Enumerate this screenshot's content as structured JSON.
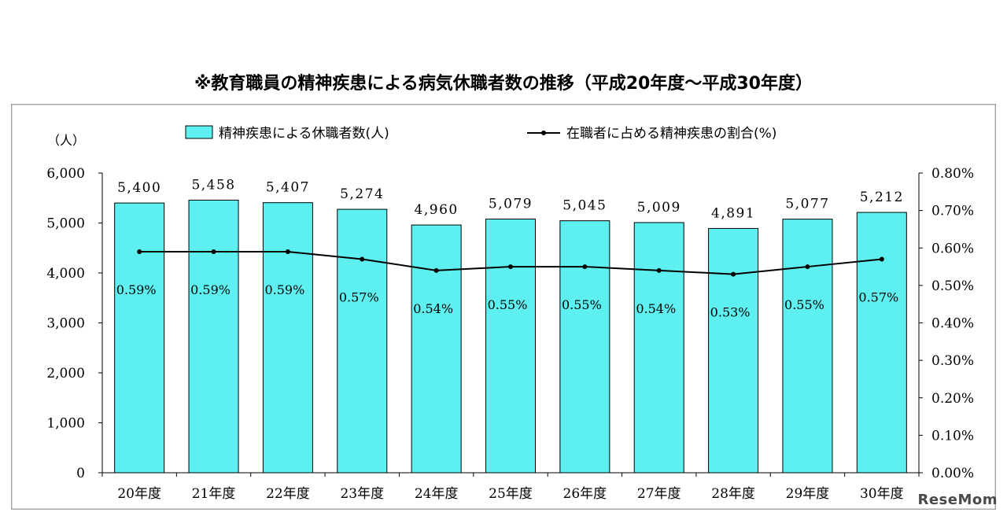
{
  "chart_data": {
    "type": "bar",
    "title": "※教育職員の精神疾患による病気休職者数の推移（平成20年度〜平成30年度）",
    "categories": [
      "20年度",
      "21年度",
      "22年度",
      "23年度",
      "24年度",
      "25年度",
      "26年度",
      "27年度",
      "28年度",
      "29年度",
      "30年度"
    ],
    "y_unit_label": "（人）",
    "series": [
      {
        "name": "精神疾患による休職者数(人)",
        "kind": "bar",
        "axis": "left",
        "color": "#5ef0f0",
        "values": [
          5400,
          5458,
          5407,
          5274,
          4960,
          5079,
          5045,
          5009,
          4891,
          5077,
          5212
        ],
        "labels": [
          "5,400",
          "5,458",
          "5,407",
          "5,274",
          "4,960",
          "5,079",
          "5,045",
          "5,009",
          "4,891",
          "5,077",
          "5,212"
        ]
      },
      {
        "name": "在職者に占める精神疾患の割合(%)",
        "kind": "line",
        "axis": "right",
        "color": "#000000",
        "values": [
          0.59,
          0.59,
          0.59,
          0.57,
          0.54,
          0.55,
          0.55,
          0.54,
          0.53,
          0.55,
          0.57
        ],
        "labels": [
          "0.59%",
          "0.59%",
          "0.59%",
          "0.57%",
          "0.54%",
          "0.55%",
          "0.55%",
          "0.54%",
          "0.53%",
          "0.55%",
          "0.57%"
        ]
      }
    ],
    "ylim": [
      0,
      6000
    ],
    "y_ticks": [
      "0",
      "1,000",
      "2,000",
      "3,000",
      "4,000",
      "5,000",
      "6,000"
    ],
    "y2lim": [
      0,
      0.8
    ],
    "y2_ticks": [
      "0.00%",
      "0.10%",
      "0.20%",
      "0.30%",
      "0.40%",
      "0.50%",
      "0.60%",
      "0.70%",
      "0.80%"
    ],
    "legend_position": "top",
    "grid": false
  },
  "watermark": "ReseMom"
}
